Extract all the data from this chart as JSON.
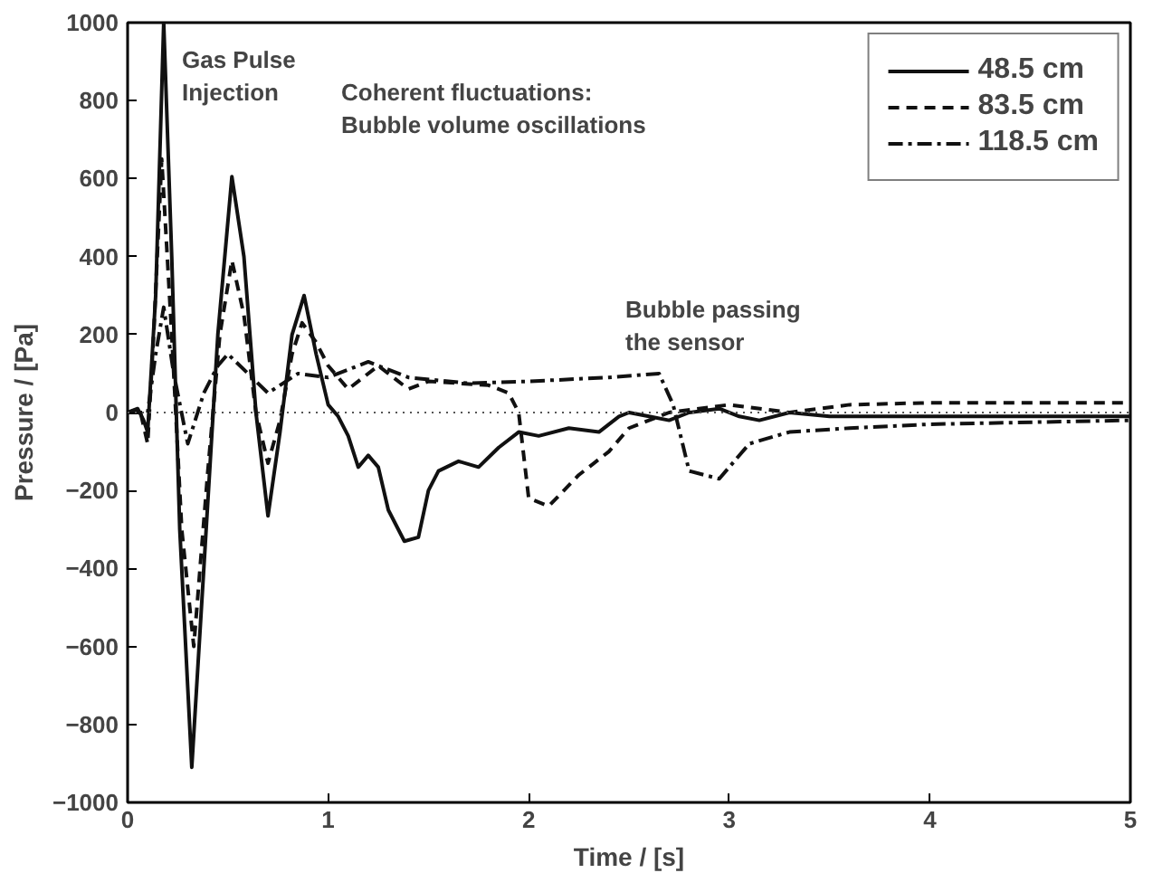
{
  "chart_data": {
    "type": "line",
    "xlabel": "Time / [s]",
    "ylabel": "Pressure / [Pa]",
    "xlim": [
      0,
      5
    ],
    "ylim": [
      -1000,
      1000
    ],
    "xticks": [
      0,
      1,
      2,
      3,
      4,
      5
    ],
    "yticks": [
      -1000,
      -800,
      -600,
      -400,
      -200,
      0,
      200,
      400,
      600,
      800,
      1000
    ],
    "grid": false,
    "legend": "top right",
    "marker": "none",
    "ref_lines": [
      {
        "axis": "y",
        "value": 0,
        "color": "#555555",
        "line_style": "dotted"
      }
    ],
    "annotations": [
      "Gas Pulse\nInjection",
      "Coherent fluctuations:\nBubble volume oscillations",
      "Bubble passing\nthe sensor"
    ],
    "series": [
      {
        "name": "48.5 cm",
        "color": "#111111",
        "line_style": "solid",
        "x": [
          0,
          0.05,
          0.08,
          0.1,
          0.14,
          0.18,
          0.22,
          0.26,
          0.32,
          0.38,
          0.45,
          0.52,
          0.58,
          0.64,
          0.7,
          0.76,
          0.82,
          0.88,
          0.94,
          1.0,
          1.05,
          1.1,
          1.15,
          1.2,
          1.25,
          1.3,
          1.38,
          1.45,
          1.5,
          1.55,
          1.65,
          1.75,
          1.85,
          1.95,
          2.05,
          2.2,
          2.35,
          2.45,
          2.5,
          2.6,
          2.7,
          2.8,
          2.95,
          3.05,
          3.15,
          3.3,
          3.5,
          4.0,
          4.5,
          5.0
        ],
        "values": [
          0,
          10,
          -20,
          -50,
          300,
          1000,
          400,
          -300,
          -910,
          -400,
          200,
          605,
          400,
          0,
          -265,
          -50,
          200,
          300,
          150,
          20,
          -10,
          -60,
          -140,
          -110,
          -140,
          -250,
          -330,
          -320,
          -200,
          -150,
          -125,
          -140,
          -90,
          -50,
          -60,
          -40,
          -50,
          -10,
          0,
          -10,
          -20,
          0,
          10,
          -10,
          -20,
          0,
          -10,
          -10,
          -10,
          -10
        ]
      },
      {
        "name": "83.5 cm",
        "color": "#111111",
        "line_style": "dashed",
        "x": [
          0,
          0.06,
          0.1,
          0.13,
          0.17,
          0.22,
          0.27,
          0.33,
          0.4,
          0.46,
          0.52,
          0.58,
          0.64,
          0.7,
          0.76,
          0.82,
          0.87,
          0.94,
          1.0,
          1.1,
          1.25,
          1.4,
          1.5,
          1.8,
          1.9,
          1.95,
          2.0,
          2.1,
          2.25,
          2.4,
          2.5,
          2.7,
          3.0,
          3.3,
          3.6,
          4.0,
          5.0
        ],
        "values": [
          0,
          10,
          -80,
          200,
          650,
          200,
          -300,
          -600,
          -150,
          200,
          390,
          250,
          0,
          -130,
          -20,
          150,
          230,
          180,
          120,
          60,
          120,
          60,
          80,
          70,
          50,
          0,
          -220,
          -240,
          -160,
          -100,
          -40,
          0,
          20,
          0,
          20,
          25,
          25
        ]
      },
      {
        "name": "118.5 cm",
        "color": "#111111",
        "line_style": "dashdot",
        "x": [
          0,
          0.1,
          0.14,
          0.18,
          0.23,
          0.3,
          0.38,
          0.45,
          0.5,
          0.6,
          0.7,
          0.85,
          1.0,
          1.2,
          1.4,
          1.7,
          2.0,
          2.4,
          2.65,
          2.72,
          2.8,
          2.95,
          3.1,
          3.3,
          3.6,
          4.0,
          5.0
        ],
        "values": [
          0,
          0,
          150,
          270,
          100,
          -80,
          50,
          120,
          150,
          100,
          50,
          100,
          90,
          130,
          90,
          75,
          80,
          90,
          100,
          20,
          -150,
          -170,
          -80,
          -50,
          -40,
          -30,
          -20
        ]
      }
    ]
  }
}
